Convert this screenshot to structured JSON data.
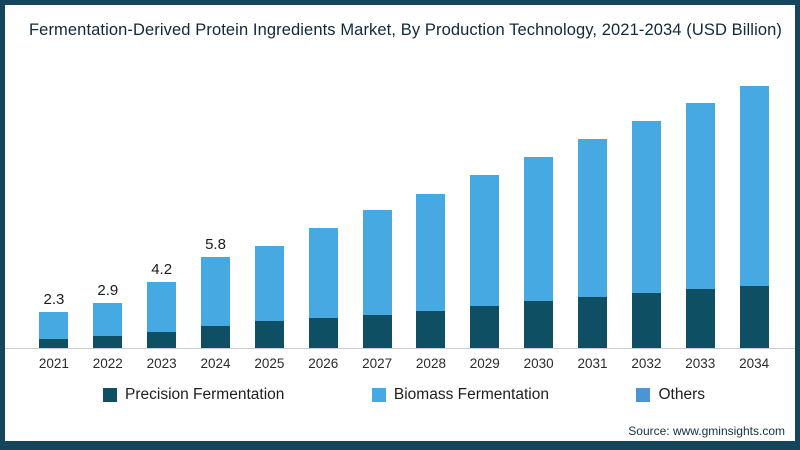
{
  "title": "Fermentation-Derived Protein Ingredients Market, By Production Technology, 2021-2034 (USD Billion)",
  "source": "Source: www.gminsights.com",
  "colors": {
    "precision": "#0F4F63",
    "biomass": "#47A9E1",
    "others": "#4D94D6",
    "frame_border": "#14455C",
    "axis_line": "#CCCCCC"
  },
  "legend": {
    "position": "bottom",
    "items": [
      {
        "label": "Precision Fermentation",
        "color_key": "precision"
      },
      {
        "label": "Biomass Fermentation",
        "color_key": "biomass"
      },
      {
        "label": "Others",
        "color_key": "others"
      }
    ]
  },
  "chart_data": {
    "type": "bar",
    "stacked": true,
    "title": "Fermentation-Derived Protein Ingredients Market, By Production Technology, 2021-2034 (USD Billion)",
    "xlabel": "",
    "ylabel": "",
    "ylim": [
      0,
      18
    ],
    "grid": false,
    "legend_position": "bottom",
    "categories": [
      "2021",
      "2022",
      "2023",
      "2024",
      "2025",
      "2026",
      "2027",
      "2028",
      "2029",
      "2030",
      "2031",
      "2032",
      "2033",
      "2034"
    ],
    "series": [
      {
        "name": "Precision Fermentation",
        "color_key": "precision",
        "values": [
          0.6,
          0.8,
          1.0,
          1.4,
          1.7,
          1.9,
          2.1,
          2.4,
          2.7,
          3.0,
          3.3,
          3.5,
          3.8,
          4.0
        ]
      },
      {
        "name": "Biomass Fermentation",
        "color_key": "biomass",
        "values": [
          1.7,
          2.1,
          3.2,
          4.4,
          4.8,
          5.8,
          6.7,
          7.5,
          8.4,
          9.2,
          10.1,
          11.0,
          11.9,
          12.8
        ]
      },
      {
        "name": "Others",
        "color_key": "others",
        "values": [
          0,
          0,
          0,
          0,
          0,
          0,
          0,
          0,
          0,
          0,
          0,
          0,
          0,
          0
        ]
      }
    ],
    "totals": [
      2.3,
      2.9,
      4.2,
      5.8,
      6.5,
      7.7,
      8.8,
      9.9,
      11.1,
      12.2,
      13.4,
      14.5,
      15.7,
      16.8
    ],
    "value_labels": [
      "2.3",
      "2.9",
      "4.2",
      "5.8",
      "",
      "",
      "",
      "",
      "",
      "",
      "",
      "",
      "",
      ""
    ]
  }
}
